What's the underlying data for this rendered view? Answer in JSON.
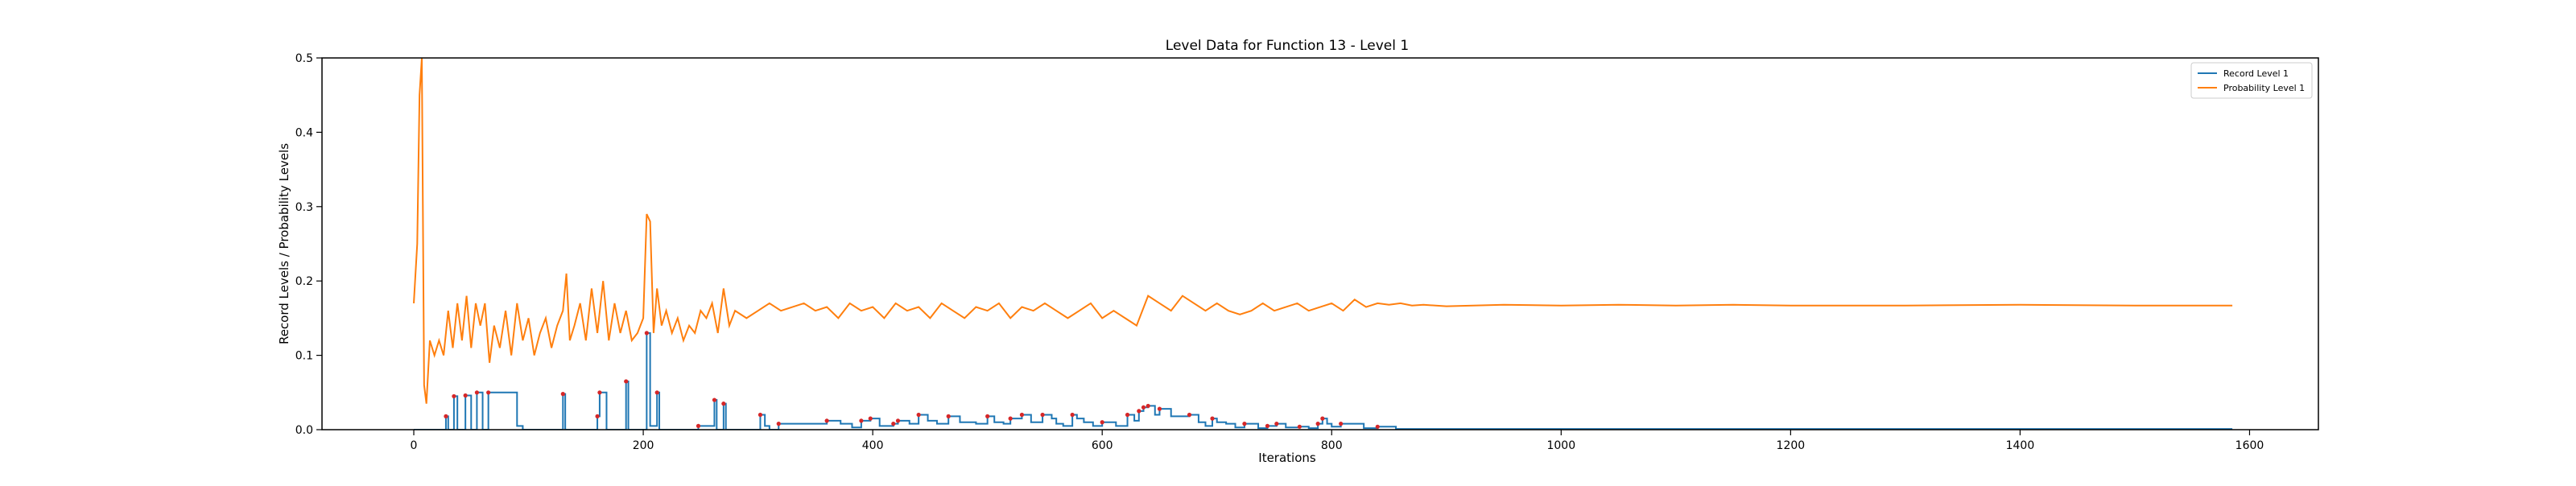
{
  "chart_data": {
    "type": "line",
    "title": "Level Data for Function 13 - Level 1",
    "xlabel": "Iterations",
    "ylabel": "Record Levels / Probability Levels",
    "xlim": [
      -80,
      1660
    ],
    "ylim": [
      0.0,
      0.5
    ],
    "x_ticks": [
      0,
      200,
      400,
      600,
      800,
      1000,
      1200,
      1400,
      1600
    ],
    "y_ticks": [
      0.0,
      0.1,
      0.2,
      0.3,
      0.4,
      0.5
    ],
    "grid": false,
    "legend_position": "top-right",
    "legend": [
      "Record Level 1",
      "Probability Level 1"
    ],
    "colors": {
      "record": "#1f77b4",
      "probability": "#ff7f0e",
      "marker": "#d62728"
    },
    "series": [
      {
        "name": "Record Level 1",
        "style": "step",
        "x": [
          0,
          6,
          8,
          28,
          30,
          35,
          38,
          45,
          50,
          55,
          60,
          65,
          90,
          95,
          130,
          132,
          135,
          160,
          162,
          168,
          172,
          185,
          187,
          190,
          200,
          203,
          206,
          212,
          214,
          220,
          248,
          262,
          264,
          270,
          272,
          276,
          280,
          302,
          306,
          310,
          318,
          330,
          345,
          360,
          372,
          382,
          390,
          398,
          406,
          418,
          422,
          432,
          440,
          448,
          456,
          466,
          476,
          490,
          500,
          506,
          514,
          520,
          530,
          538,
          548,
          556,
          560,
          566,
          574,
          578,
          584,
          592,
          600,
          612,
          622,
          628,
          632,
          636,
          640,
          646,
          650,
          660,
          668,
          672,
          676,
          680,
          684,
          690,
          696,
          700,
          708,
          716,
          724,
          736,
          744,
          752,
          760,
          772,
          780,
          788,
          792,
          796,
          800,
          808,
          820,
          828,
          840,
          856,
          876,
          896,
          920,
          950,
          980,
          1020,
          1080,
          1150,
          1220,
          1300,
          1400,
          1500,
          1585
        ],
        "y": [
          0.0,
          0.0,
          0.0,
          0.018,
          0.0,
          0.045,
          0.0,
          0.046,
          0.0,
          0.05,
          0.0,
          0.05,
          0.005,
          0.0,
          0.048,
          0.0,
          0.0,
          0.018,
          0.05,
          0.0,
          0.0,
          0.065,
          0.0,
          0.0,
          0.0,
          0.13,
          0.005,
          0.05,
          0.0,
          0.0,
          0.005,
          0.04,
          0.0,
          0.035,
          0.0,
          0.0,
          0.0,
          0.02,
          0.005,
          0.0,
          0.008,
          0.008,
          0.008,
          0.012,
          0.008,
          0.003,
          0.012,
          0.015,
          0.005,
          0.008,
          0.012,
          0.008,
          0.02,
          0.012,
          0.008,
          0.018,
          0.01,
          0.008,
          0.018,
          0.01,
          0.008,
          0.015,
          0.02,
          0.01,
          0.02,
          0.015,
          0.008,
          0.005,
          0.02,
          0.015,
          0.01,
          0.005,
          0.01,
          0.005,
          0.02,
          0.012,
          0.025,
          0.03,
          0.032,
          0.02,
          0.028,
          0.018,
          0.018,
          0.018,
          0.02,
          0.02,
          0.01,
          0.005,
          0.015,
          0.01,
          0.008,
          0.003,
          0.008,
          0.002,
          0.005,
          0.008,
          0.003,
          0.004,
          0.002,
          0.008,
          0.015,
          0.008,
          0.004,
          0.008,
          0.008,
          0.002,
          0.004,
          0.001,
          0.001,
          0.001,
          0.001,
          0.001,
          0.001,
          0.001,
          0.001,
          0.001,
          0.001,
          0.001,
          0.001,
          0.001,
          0.001
        ]
      },
      {
        "name": "Probability Level 1",
        "style": "line",
        "x": [
          0,
          3,
          5,
          7,
          9,
          11,
          14,
          18,
          22,
          26,
          30,
          34,
          38,
          42,
          46,
          50,
          54,
          58,
          62,
          66,
          70,
          75,
          80,
          85,
          90,
          95,
          100,
          105,
          110,
          115,
          120,
          125,
          130,
          133,
          136,
          140,
          145,
          150,
          155,
          160,
          165,
          170,
          175,
          180,
          185,
          190,
          195,
          200,
          203,
          206,
          209,
          212,
          216,
          220,
          225,
          230,
          235,
          240,
          245,
          250,
          255,
          260,
          265,
          270,
          275,
          280,
          290,
          300,
          310,
          320,
          330,
          340,
          350,
          360,
          370,
          380,
          390,
          400,
          410,
          420,
          430,
          440,
          450,
          460,
          470,
          480,
          490,
          500,
          510,
          520,
          530,
          540,
          550,
          560,
          570,
          580,
          590,
          600,
          610,
          620,
          630,
          640,
          650,
          660,
          670,
          680,
          690,
          700,
          710,
          720,
          730,
          740,
          750,
          760,
          770,
          780,
          790,
          800,
          810,
          820,
          830,
          840,
          850,
          860,
          870,
          880,
          900,
          950,
          1000,
          1050,
          1100,
          1150,
          1200,
          1300,
          1400,
          1500,
          1585
        ],
        "y": [
          0.17,
          0.25,
          0.45,
          0.5,
          0.06,
          0.035,
          0.12,
          0.1,
          0.12,
          0.1,
          0.16,
          0.11,
          0.17,
          0.12,
          0.18,
          0.11,
          0.17,
          0.14,
          0.17,
          0.09,
          0.14,
          0.11,
          0.16,
          0.1,
          0.17,
          0.12,
          0.15,
          0.1,
          0.13,
          0.15,
          0.11,
          0.14,
          0.16,
          0.21,
          0.12,
          0.14,
          0.17,
          0.12,
          0.19,
          0.13,
          0.2,
          0.12,
          0.17,
          0.13,
          0.16,
          0.12,
          0.13,
          0.15,
          0.29,
          0.28,
          0.13,
          0.19,
          0.14,
          0.16,
          0.13,
          0.15,
          0.12,
          0.14,
          0.13,
          0.16,
          0.15,
          0.17,
          0.13,
          0.19,
          0.14,
          0.16,
          0.15,
          0.16,
          0.17,
          0.16,
          0.165,
          0.17,
          0.16,
          0.165,
          0.15,
          0.17,
          0.16,
          0.165,
          0.15,
          0.17,
          0.16,
          0.165,
          0.15,
          0.17,
          0.16,
          0.15,
          0.165,
          0.16,
          0.17,
          0.15,
          0.165,
          0.16,
          0.17,
          0.16,
          0.15,
          0.16,
          0.17,
          0.15,
          0.16,
          0.15,
          0.14,
          0.18,
          0.17,
          0.16,
          0.18,
          0.17,
          0.16,
          0.17,
          0.16,
          0.155,
          0.16,
          0.17,
          0.16,
          0.165,
          0.17,
          0.16,
          0.165,
          0.17,
          0.16,
          0.175,
          0.165,
          0.17,
          0.168,
          0.17,
          0.167,
          0.168,
          0.166,
          0.168,
          0.167,
          0.168,
          0.167,
          0.168,
          0.167,
          0.167,
          0.168,
          0.167,
          0.167
        ]
      }
    ]
  }
}
